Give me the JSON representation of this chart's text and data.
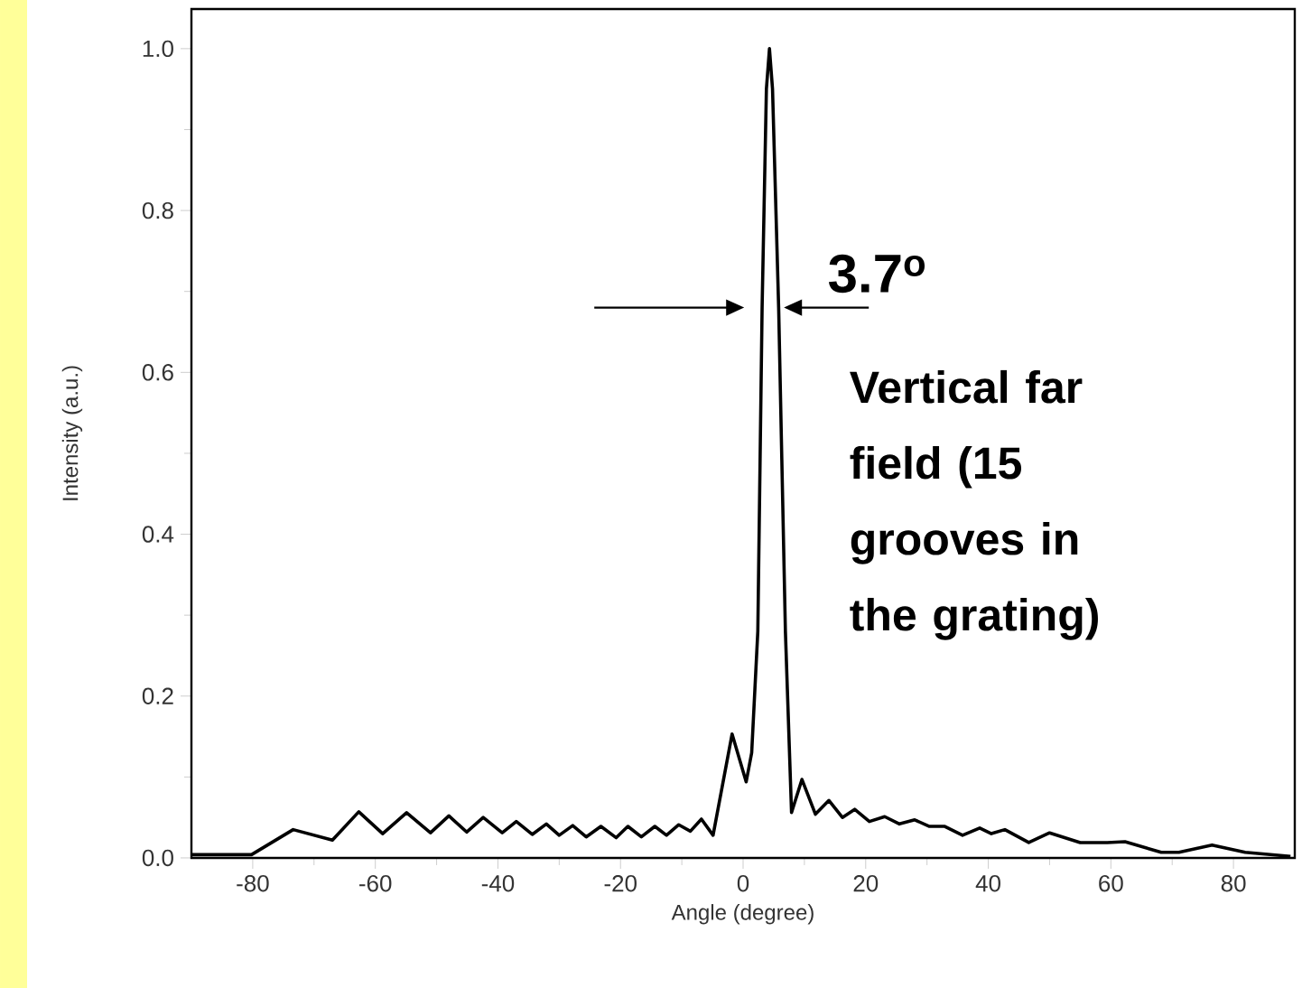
{
  "chart_data": {
    "type": "line",
    "xlabel": "Angle (degree)",
    "ylabel": "Intensity (a.u.)",
    "annotations": [
      {
        "text": "3.7$^{o}$",
        "x": 4.3,
        "y": 0.68
      },
      "Vertical far field (15 grooves in the grating)"
    ],
    "color": "#000000",
    "marker": "none",
    "x": [
      -89.9,
      -80.2,
      -73.4,
      -67.0,
      -62.7,
      -58.8,
      -54.9,
      -51.0,
      -48.0,
      -45.1,
      -42.4,
      -39.3,
      -37.0,
      -34.4,
      -32.1,
      -30.0,
      -27.8,
      -25.6,
      -23.2,
      -20.7,
      -18.8,
      -16.6,
      -14.4,
      -12.5,
      -10.5,
      -8.6,
      -6.8,
      -4.9,
      -1.8,
      0.5,
      1.4,
      2.4,
      3.1,
      3.8,
      4.3,
      4.8,
      5.8,
      6.9,
      7.9,
      9.6,
      11.8,
      14.0,
      16.2,
      18.2,
      20.6,
      23.1,
      25.5,
      28.0,
      30.4,
      32.9,
      35.8,
      38.6,
      40.5,
      42.7,
      46.6,
      50.0,
      55.0,
      59.4,
      62.3,
      68.2,
      71.1,
      76.5,
      81.9,
      89.3
    ],
    "values": [
      0.004,
      0.004,
      0.035,
      0.022,
      0.057,
      0.03,
      0.056,
      0.031,
      0.052,
      0.032,
      0.05,
      0.031,
      0.045,
      0.029,
      0.042,
      0.028,
      0.04,
      0.026,
      0.039,
      0.025,
      0.039,
      0.026,
      0.039,
      0.028,
      0.041,
      0.033,
      0.048,
      0.028,
      0.153,
      0.094,
      0.13,
      0.28,
      0.68,
      0.95,
      1.0,
      0.95,
      0.68,
      0.28,
      0.056,
      0.097,
      0.054,
      0.071,
      0.05,
      0.06,
      0.045,
      0.051,
      0.042,
      0.047,
      0.039,
      0.039,
      0.028,
      0.037,
      0.03,
      0.035,
      0.019,
      0.031,
      0.019,
      0.019,
      0.02,
      0.007,
      0.007,
      0.016,
      0.007,
      0.002
    ],
    "xlim": [
      -90,
      90
    ],
    "ylim": [
      0,
      1.049
    ],
    "xticks": [
      -80,
      -60,
      -40,
      -20,
      0,
      20,
      40,
      60,
      80
    ],
    "yticks": [
      {
        "value": 0,
        "label": "0.0"
      },
      {
        "value": 0.2,
        "label": "0.2"
      },
      {
        "value": 0.4,
        "label": "0.4"
      },
      {
        "value": 0.6,
        "label": "0.6"
      },
      {
        "value": 0.8,
        "label": "0.8"
      },
      {
        "value": 1,
        "label": "1.0"
      }
    ]
  }
}
